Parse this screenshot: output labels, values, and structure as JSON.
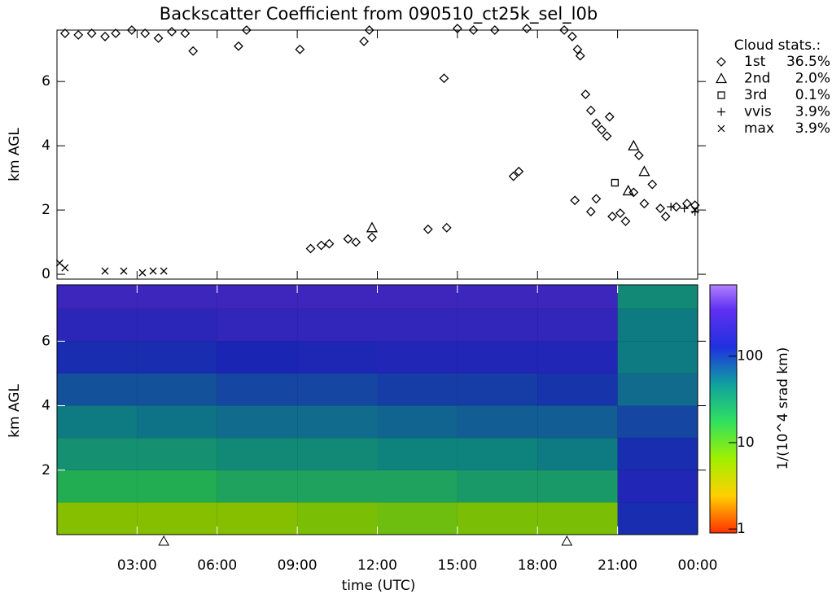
{
  "chart_data": [
    {
      "type": "scatter",
      "title": "Backscatter Coefficient from 090510_ct25k_sel_l0b",
      "ylabel": "km AGL",
      "xlim": [
        0,
        24
      ],
      "xticks": [
        3,
        6,
        9,
        12,
        15,
        18,
        21
      ],
      "ylim": [
        -0.15,
        7.6
      ],
      "yticks": [
        0,
        2,
        4,
        6
      ],
      "legend_title": "Cloud stats.:",
      "legend": "right",
      "series": [
        {
          "name": "1st",
          "marker": "diamond",
          "color": "#000000",
          "share": {
            "value": 36.5,
            "label": "36.5%"
          },
          "x": [
            0.3,
            0.8,
            1.3,
            1.8,
            2.2,
            2.8,
            3.3,
            3.8,
            4.3,
            4.8,
            5.1,
            6.8,
            7.1,
            9.1,
            11.5,
            11.7,
            15.0,
            15.6,
            16.4,
            17.6,
            14.5,
            9.5,
            9.9,
            10.2,
            10.9,
            11.2,
            11.8,
            13.9,
            14.6,
            17.1,
            17.3,
            19.0,
            19.3,
            19.5,
            19.6,
            19.8,
            20.0,
            20.2,
            20.4,
            20.6,
            20.7,
            19.4,
            20.0,
            20.2,
            20.8,
            21.1,
            21.3,
            21.6,
            22.0,
            21.8,
            22.3,
            22.6,
            22.8,
            23.2,
            23.6,
            23.9
          ],
          "values": [
            7.5,
            7.45,
            7.5,
            7.4,
            7.5,
            7.6,
            7.5,
            7.35,
            7.55,
            7.5,
            6.95,
            7.1,
            7.6,
            7.0,
            7.25,
            7.6,
            7.65,
            7.6,
            7.6,
            7.65,
            6.1,
            0.8,
            0.9,
            0.95,
            1.1,
            1.0,
            1.15,
            1.4,
            1.45,
            3.05,
            3.2,
            7.6,
            7.4,
            7.0,
            6.8,
            5.6,
            5.1,
            4.7,
            4.5,
            4.3,
            4.9,
            2.3,
            1.95,
            2.35,
            1.8,
            1.9,
            1.65,
            2.55,
            2.2,
            3.7,
            2.8,
            2.05,
            1.8,
            2.1,
            2.2,
            2.15
          ]
        },
        {
          "name": "2nd",
          "marker": "triangle",
          "color": "#000000",
          "share": {
            "value": 2.0,
            "label": "2.0%"
          },
          "x": [
            11.8,
            21.6,
            21.4,
            22.0
          ],
          "values": [
            1.45,
            4.0,
            2.6,
            3.2
          ]
        },
        {
          "name": "3rd",
          "marker": "square",
          "color": "#000000",
          "share": {
            "value": 0.1,
            "label": "0.1%"
          },
          "x": [
            20.9
          ],
          "values": [
            2.85
          ]
        },
        {
          "name": "vvis",
          "marker": "plus",
          "color": "#000000",
          "share": {
            "value": 3.9,
            "label": "3.9%"
          },
          "x": [
            23.0,
            23.5,
            23.9
          ],
          "values": [
            2.1,
            2.05,
            1.95
          ]
        },
        {
          "name": "max",
          "marker": "cross",
          "color": "#000000",
          "share": {
            "value": 3.9,
            "label": "3.9%"
          },
          "x": [
            0.1,
            0.3,
            1.8,
            2.5,
            3.2,
            3.6,
            4.0,
            23.9
          ],
          "values": [
            0.35,
            0.2,
            0.1,
            0.1,
            0.05,
            0.1,
            0.1,
            2.0
          ]
        }
      ]
    },
    {
      "type": "heatmap",
      "ylabel": "km AGL",
      "xlabel": "time (UTC)",
      "colorbar_label": "1/(10^4 srad km)",
      "xlim": [
        0,
        24
      ],
      "xticks": [
        {
          "value": 3,
          "label": "03:00"
        },
        {
          "value": 6,
          "label": "06:00"
        },
        {
          "value": 9,
          "label": "09:00"
        },
        {
          "value": 12,
          "label": "12:00"
        },
        {
          "value": 15,
          "label": "15:00"
        },
        {
          "value": 18,
          "label": "18:00"
        },
        {
          "value": 21,
          "label": "21:00"
        },
        {
          "value": 24,
          "label": "00:00"
        }
      ],
      "ylim": [
        0,
        7.75
      ],
      "yticks": [
        2,
        4,
        6
      ],
      "clim": [
        0.9,
        670
      ],
      "color_scale": "log",
      "cticks": [
        1,
        10,
        100
      ],
      "markers_x": [
        4.0,
        19.1
      ],
      "xbins": [
        0,
        3,
        6,
        9,
        12,
        15,
        18,
        21,
        24
      ],
      "ybins": [
        0,
        1,
        2,
        3,
        4,
        5,
        6,
        7,
        7.75
      ],
      "values": [
        [
          6,
          6,
          6,
          7,
          8,
          7,
          7,
          120
        ],
        [
          20,
          20,
          25,
          25,
          25,
          30,
          30,
          150
        ],
        [
          35,
          35,
          40,
          40,
          45,
          45,
          50,
          120
        ],
        [
          50,
          55,
          60,
          60,
          65,
          70,
          70,
          90
        ],
        [
          80,
          80,
          90,
          90,
          100,
          100,
          110,
          60
        ],
        [
          120,
          120,
          130,
          140,
          150,
          150,
          150,
          50
        ],
        [
          180,
          180,
          200,
          200,
          200,
          200,
          200,
          50
        ],
        [
          250,
          250,
          260,
          260,
          260,
          250,
          250,
          40
        ]
      ]
    }
  ]
}
